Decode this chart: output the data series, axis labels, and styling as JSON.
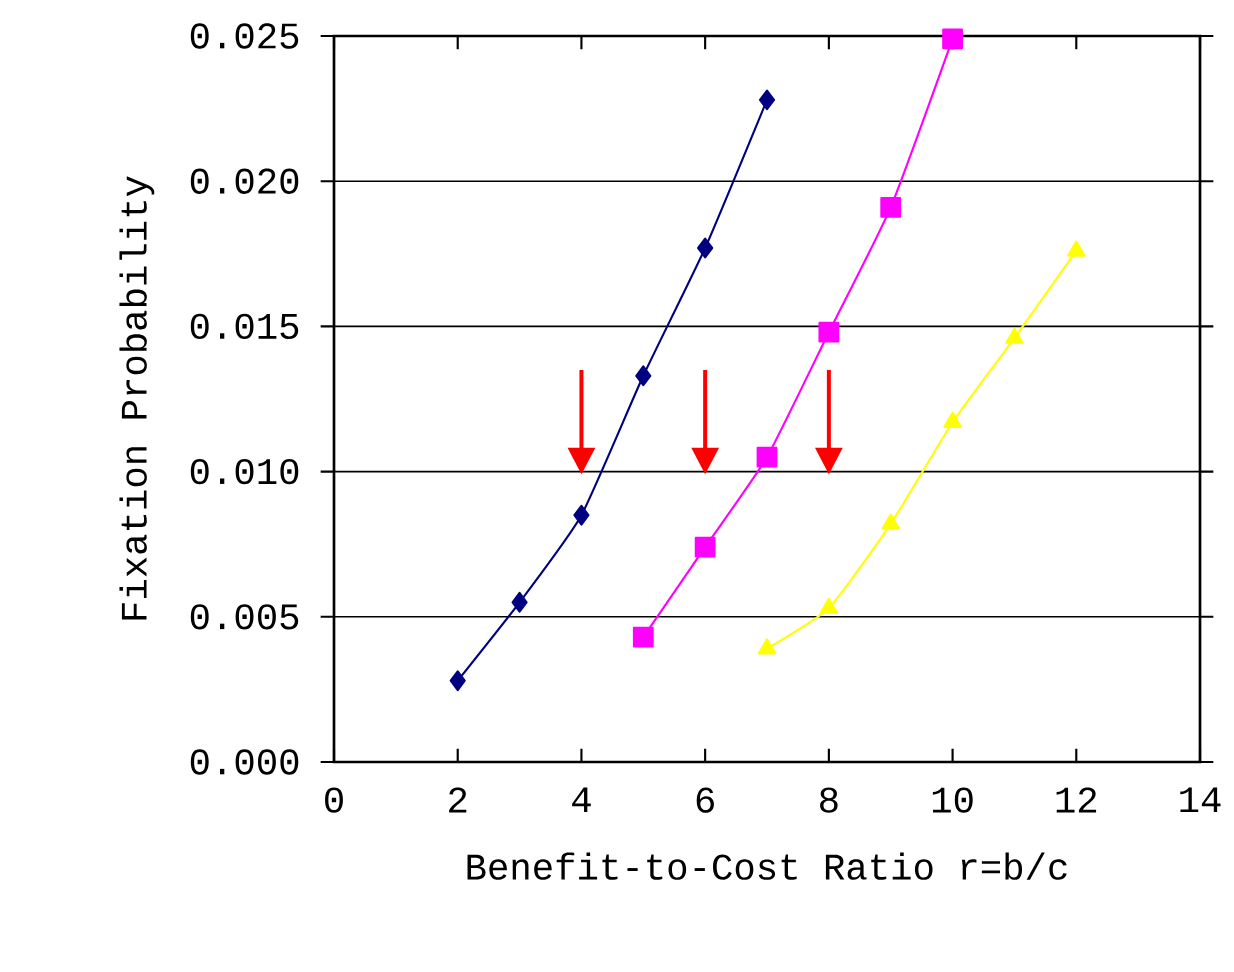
{
  "chart_data": {
    "type": "line",
    "xlabel": "Benefit-to-Cost Ratio r=b/c",
    "ylabel": "Fixation Probability",
    "xlim": [
      0,
      14
    ],
    "xticks": [
      0,
      2,
      4,
      6,
      8,
      10,
      12,
      14
    ],
    "ylim": [
      0,
      0.025
    ],
    "yticks": [
      {
        "value": 0,
        "label": "0.000"
      },
      0.005,
      {
        "value": 0.01,
        "label": "0.010"
      },
      0.015,
      {
        "value": 0.02,
        "label": "0.020"
      },
      0.025
    ],
    "grid": "y",
    "series": [
      {
        "color": "#000080",
        "marker": "diamond",
        "x": [
          2,
          3,
          4,
          5,
          6,
          7
        ],
        "values": [
          0.0028,
          0.0055,
          0.0085,
          0.0133,
          0.0177,
          0.0228
        ]
      },
      {
        "color": "#ff00ff",
        "marker": "square",
        "x": [
          5,
          6,
          7,
          8,
          9,
          10
        ],
        "values": [
          0.0043,
          0.0074,
          0.0105,
          0.0148,
          0.0191,
          0.0249
        ]
      },
      {
        "color": "#ffff00",
        "marker": "triangle",
        "x": [
          7,
          8,
          9,
          10,
          11,
          12
        ],
        "values": [
          0.0039,
          0.0053,
          0.0082,
          0.0117,
          0.0146,
          0.0176
        ]
      }
    ]
  }
}
